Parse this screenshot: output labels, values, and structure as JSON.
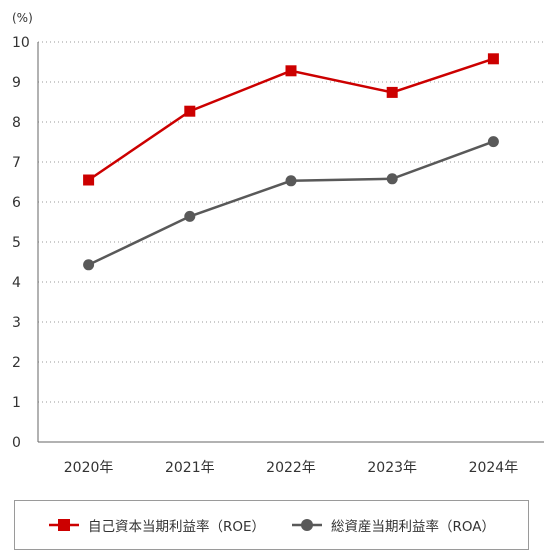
{
  "chart_data": {
    "type": "line",
    "unit_label": "(%)",
    "categories": [
      "2020年",
      "2021年",
      "2022年",
      "2023年",
      "2024年"
    ],
    "ylim": [
      0,
      10
    ],
    "yticks": [
      "0",
      "1",
      "2",
      "3",
      "4",
      "5",
      "6",
      "7",
      "8",
      "9",
      "10"
    ],
    "grid": true,
    "legend_position": "bottom",
    "series": [
      {
        "name": "自己資本当期利益率（ROE）",
        "values": [
          6.55,
          8.27,
          9.28,
          8.74,
          9.58
        ],
        "color": "#cc0000",
        "marker": "square"
      },
      {
        "name": "総資産当期利益率（ROA）",
        "values": [
          4.43,
          5.64,
          6.53,
          6.58,
          7.51
        ],
        "color": "#595959",
        "marker": "circle"
      }
    ]
  }
}
